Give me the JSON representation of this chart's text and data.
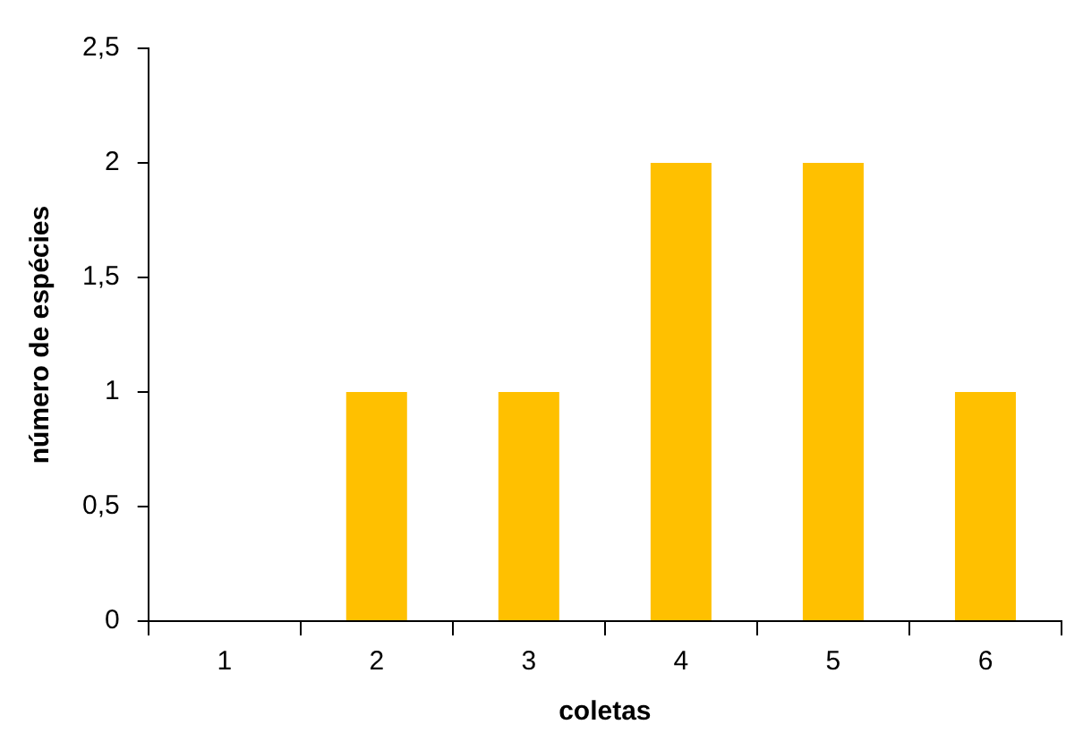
{
  "chart_data": {
    "type": "bar",
    "xlabel": "coletas",
    "ylabel": "número de espécies",
    "categories": [
      "1",
      "2",
      "3",
      "4",
      "5",
      "6"
    ],
    "values": [
      0,
      1,
      1,
      2,
      2,
      1
    ],
    "color": "#ffc000",
    "ylim": [
      0,
      2.5
    ],
    "yticks": [
      0,
      {
        "value": 0.5,
        "label": "0,5"
      },
      1,
      {
        "value": 1.5,
        "label": "1,5"
      },
      2,
      {
        "value": 2.5,
        "label": "2,5"
      }
    ],
    "grid": false,
    "legend": false
  }
}
